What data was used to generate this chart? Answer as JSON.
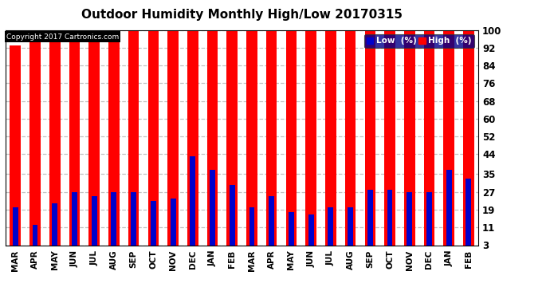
{
  "title": "Outdoor Humidity Monthly High/Low 20170315",
  "copyright_text": "Copyright 2017 Cartronics.com",
  "background_color": "#ffffff",
  "plot_bg_color": "#ffffff",
  "bar_color_high": "#ff0000",
  "bar_color_low": "#0000cc",
  "months": [
    "MAR",
    "APR",
    "MAY",
    "JUN",
    "JUL",
    "AUG",
    "SEP",
    "OCT",
    "NOV",
    "DEC",
    "JAN",
    "FEB",
    "MAR",
    "APR",
    "MAY",
    "JUN",
    "JUL",
    "AUG",
    "SEP",
    "OCT",
    "NOV",
    "DEC",
    "JAN",
    "FEB"
  ],
  "high_values": [
    93,
    100,
    100,
    100,
    100,
    100,
    100,
    100,
    100,
    100,
    100,
    100,
    100,
    100,
    100,
    100,
    100,
    100,
    100,
    100,
    100,
    100,
    100,
    100
  ],
  "low_values": [
    20,
    12,
    22,
    27,
    25,
    27,
    27,
    23,
    24,
    43,
    37,
    30,
    20,
    25,
    18,
    17,
    20,
    20,
    28,
    28,
    27,
    27,
    37,
    33
  ],
  "yticks": [
    3,
    11,
    19,
    27,
    35,
    44,
    52,
    60,
    68,
    76,
    84,
    92,
    100
  ],
  "ylim": [
    3,
    100
  ],
  "grid_color": "#c0c0c0",
  "legend_low_label": "Low  (%)",
  "legend_high_label": "High  (%)"
}
